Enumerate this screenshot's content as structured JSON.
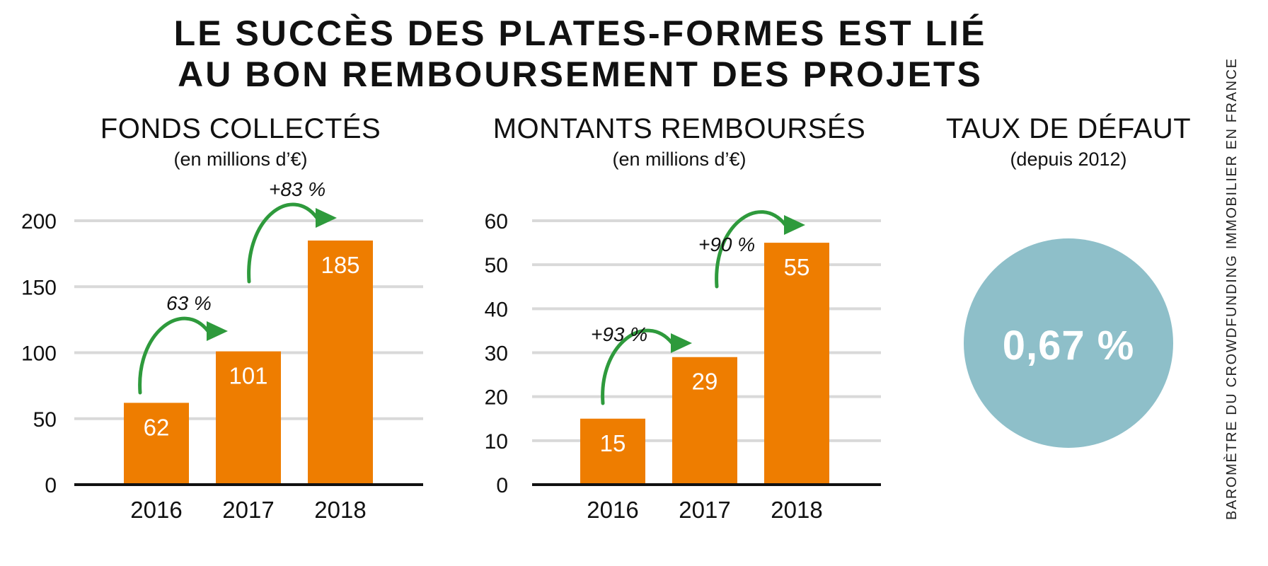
{
  "title": {
    "line1": "LE SUCCÈS DES PLATES-FORMES EST LIÉ",
    "line2": "AU BON REMBOURSEMENT DES PROJETS"
  },
  "side_credit": "BAROMÈTRE DU CROWDFUNDING IMMOBILIER EN FRANCE",
  "colors": {
    "bar": "#ee7d00",
    "arrow": "#2e9a3c",
    "grid": "#d9d9d9",
    "circle": "#8ebfc9"
  },
  "chart_data": [
    {
      "type": "bar",
      "title": "FONDS COLLECTÉS",
      "subtitle": "(en millions d’€)",
      "categories": [
        "2016",
        "2017",
        "2018"
      ],
      "values": [
        62,
        101,
        185
      ],
      "value_labels": [
        "62",
        "101",
        "185"
      ],
      "ylim": [
        0,
        200
      ],
      "yticks": [
        0,
        50,
        100,
        150,
        200
      ],
      "ytick_labels": [
        "0",
        "50",
        "100",
        "150",
        "200"
      ],
      "grid": true,
      "annotations": [
        {
          "from": "2016",
          "to": "2017",
          "text": "63 %"
        },
        {
          "from": "2017",
          "to": "2018",
          "text": "+83 %"
        }
      ]
    },
    {
      "type": "bar",
      "title": "MONTANTS REMBOURSÉS",
      "subtitle": "(en millions d’€)",
      "categories": [
        "2016",
        "2017",
        "2018"
      ],
      "values": [
        15,
        29,
        55
      ],
      "value_labels": [
        "15",
        "29",
        "55"
      ],
      "ylim": [
        0,
        60
      ],
      "yticks": [
        0,
        10,
        20,
        30,
        40,
        50,
        60
      ],
      "ytick_labels": [
        "0",
        "10",
        "20",
        "30",
        "40",
        "50",
        "60"
      ],
      "grid": true,
      "annotations": [
        {
          "from": "2016",
          "to": "2017",
          "text": "+93 %"
        },
        {
          "from": "2017",
          "to": "2018",
          "text": "+90 %"
        }
      ]
    }
  ],
  "default_rate": {
    "title": "TAUX DE DÉFAUT",
    "subtitle": "(depuis 2012)",
    "value": "0,67 %"
  }
}
